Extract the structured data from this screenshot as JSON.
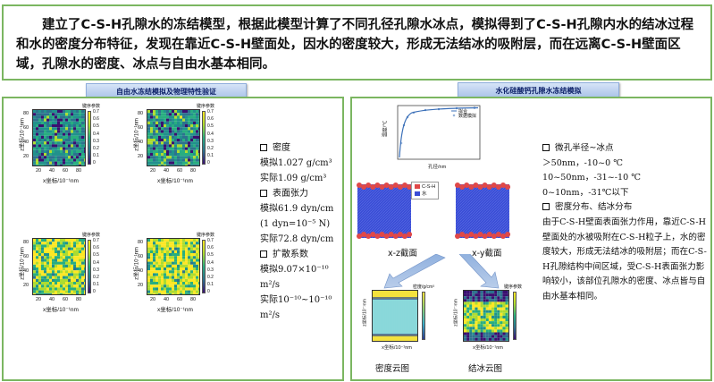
{
  "summary": "建立了C-S-H孔隙水的冻结模型，根据此模型计算了不同孔径孔隙水冰点，模拟得到了C-S-H孔隙内水的结冰过程和水的密度分布特征，发现在靠近C-S-H壁面处，因水的密度较大，形成无法结冰的吸附层，而在远离C-S-H壁面区域，孔隙水的密度、冰点与自由水基本相同。",
  "banners": {
    "left": "自由水冻结模拟及物理特性验证",
    "right": "水化硅酸钙孔隙水冻结模拟"
  },
  "left_plots": {
    "xlabel": "x坐标/10⁻¹nm",
    "ylabel": "z坐标/10⁻¹nm",
    "cbar_title": "键序参数",
    "x_ticks": [
      "20",
      "40",
      "60",
      "80"
    ],
    "y_ticks": [
      "80",
      "60",
      "40",
      "20"
    ],
    "cbar_ticks": [
      "0.7",
      "0.6",
      "0.5",
      "0.4",
      "0.3",
      "0.2",
      "0.1",
      "0"
    ]
  },
  "properties": {
    "density_head": "密度",
    "density_sim": "模拟1.027 g/cm³",
    "density_real": "实际1.09 g/cm³",
    "tension_head": "表面张力",
    "tension_sim": "模拟61.9  dyn/cm",
    "tension_unit": "(1 dyn=10⁻⁵ N)",
    "tension_real": "实际72.8 dyn/cm",
    "diffusion_head": "扩散系数",
    "diffusion_sim": "模拟9.07×10⁻¹⁰",
    "diffusion_sim_unit": "m²/s",
    "diffusion_real": "实际10⁻¹⁰~10⁻¹⁰",
    "diffusion_real_unit": "m²/s"
  },
  "curve": {
    "ylabel": "温度/℃",
    "xlabel": "孔径/nm",
    "legend": [
      "拟合",
      "数据模拟"
    ]
  },
  "sim": {
    "legend_csh": "C-S-H",
    "legend_water": "水",
    "xz_caption": "x-z截面",
    "xy_caption": "x-y截面",
    "colors": {
      "csh": "#e04848",
      "water": "#3a4dd6"
    }
  },
  "maps": {
    "density_caption": "密度云图",
    "freeze_caption": "结冰云图",
    "density_cbar_title": "密度/g/cm³",
    "freeze_cbar_title": "键序参数",
    "xlabel": "x坐标/10⁻¹nm",
    "ylabel": "z坐标/10⁻¹nm"
  },
  "description": {
    "pore_head": "微孔半径~冰点",
    "pore_1": "＞50nm，-10~0 ℃",
    "pore_2": "10~50nm，-31~-10 ℃",
    "pore_3": "0~10nm，-31℃以下",
    "dist_head": "密度分布、结冰分布",
    "dist_body": "由于C-S-H壁面表面张力作用，靠近C-S-H壁面处的水被吸附在C-S-H粒子上，水的密度较大，形成无法结冰的吸附层；而在C-S-H孔隙结构中间区域，受C-S-H表面张力影响较小，该部位孔隙水的密度、冰点皆与自由水基本相同。"
  }
}
